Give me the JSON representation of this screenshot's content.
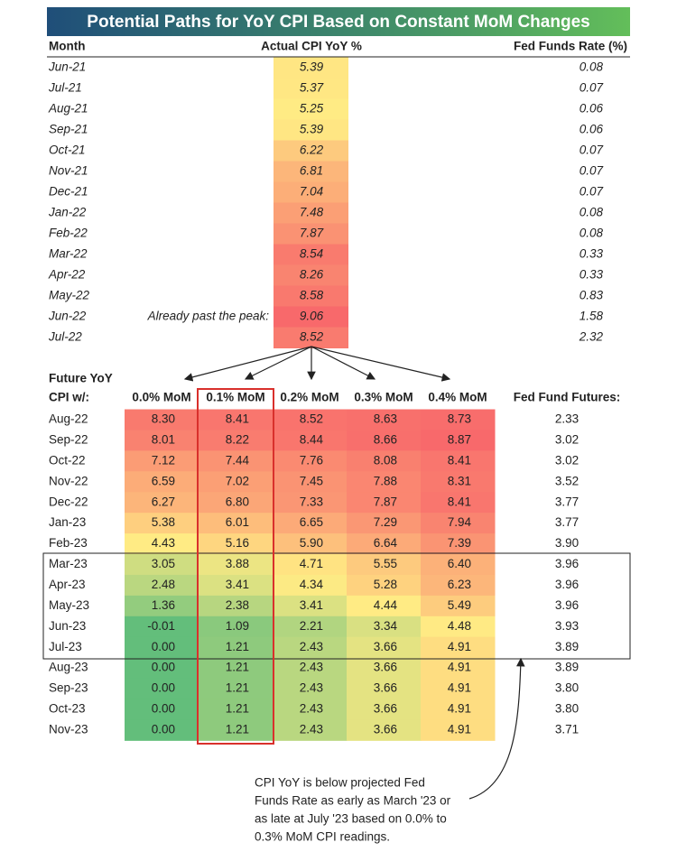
{
  "title": "Potential Paths for YoY CPI Based on Constant MoM Changes",
  "top_table": {
    "headers": [
      "Month",
      "Actual CPI YoY %",
      "Fed Funds Rate (%)"
    ],
    "note": "Already past the peak:",
    "rows": [
      [
        "Jun-21",
        "5.39",
        "0.08"
      ],
      [
        "Jul-21",
        "5.37",
        "0.07"
      ],
      [
        "Aug-21",
        "5.25",
        "0.06"
      ],
      [
        "Sep-21",
        "5.39",
        "0.06"
      ],
      [
        "Oct-21",
        "6.22",
        "0.07"
      ],
      [
        "Nov-21",
        "6.81",
        "0.07"
      ],
      [
        "Dec-21",
        "7.04",
        "0.07"
      ],
      [
        "Jan-22",
        "7.48",
        "0.08"
      ],
      [
        "Feb-22",
        "7.87",
        "0.08"
      ],
      [
        "Mar-22",
        "8.54",
        "0.33"
      ],
      [
        "Apr-22",
        "8.26",
        "0.33"
      ],
      [
        "May-22",
        "8.58",
        "0.83"
      ],
      [
        "Jun-22",
        "9.06",
        "1.58"
      ],
      [
        "Jul-22",
        "8.52",
        "2.32"
      ]
    ]
  },
  "bottom_table": {
    "header_top": "Future YoY",
    "headers": [
      "CPI w/:",
      "0.0% MoM",
      "0.1% MoM",
      "0.2% MoM",
      "0.3% MoM",
      "0.4% MoM",
      "Fed Fund Futures:"
    ],
    "rows": [
      [
        "Aug-22",
        "8.30",
        "8.41",
        "8.52",
        "8.63",
        "8.73",
        "2.33"
      ],
      [
        "Sep-22",
        "8.01",
        "8.22",
        "8.44",
        "8.66",
        "8.87",
        "3.02"
      ],
      [
        "Oct-22",
        "7.12",
        "7.44",
        "7.76",
        "8.08",
        "8.41",
        "3.02"
      ],
      [
        "Nov-22",
        "6.59",
        "7.02",
        "7.45",
        "7.88",
        "8.31",
        "3.52"
      ],
      [
        "Dec-22",
        "6.27",
        "6.80",
        "7.33",
        "7.87",
        "8.41",
        "3.77"
      ],
      [
        "Jan-23",
        "5.38",
        "6.01",
        "6.65",
        "7.29",
        "7.94",
        "3.77"
      ],
      [
        "Feb-23",
        "4.43",
        "5.16",
        "5.90",
        "6.64",
        "7.39",
        "3.90"
      ],
      [
        "Mar-23",
        "3.05",
        "3.88",
        "4.71",
        "5.55",
        "6.40",
        "3.96"
      ],
      [
        "Apr-23",
        "2.48",
        "3.41",
        "4.34",
        "5.28",
        "6.23",
        "3.96"
      ],
      [
        "May-23",
        "1.36",
        "2.38",
        "3.41",
        "4.44",
        "5.49",
        "3.96"
      ],
      [
        "Jun-23",
        "-0.01",
        "1.09",
        "2.21",
        "3.34",
        "4.48",
        "3.93"
      ],
      [
        "Jul-23",
        "0.00",
        "1.21",
        "2.43",
        "3.66",
        "4.91",
        "3.89"
      ],
      [
        "Aug-23",
        "0.00",
        "1.21",
        "2.43",
        "3.66",
        "4.91",
        "3.89"
      ],
      [
        "Sep-23",
        "0.00",
        "1.21",
        "2.43",
        "3.66",
        "4.91",
        "3.80"
      ],
      [
        "Oct-23",
        "0.00",
        "1.21",
        "2.43",
        "3.66",
        "4.91",
        "3.80"
      ],
      [
        "Nov-23",
        "0.00",
        "1.21",
        "2.43",
        "3.66",
        "4.91",
        "3.71"
      ]
    ]
  },
  "annotation": [
    "CPI YoY is below projected Fed",
    "Funds Rate as early as March '23 or",
    "as late at July '23 based on 0.0% to",
    "0.3% MoM CPI readings."
  ]
}
